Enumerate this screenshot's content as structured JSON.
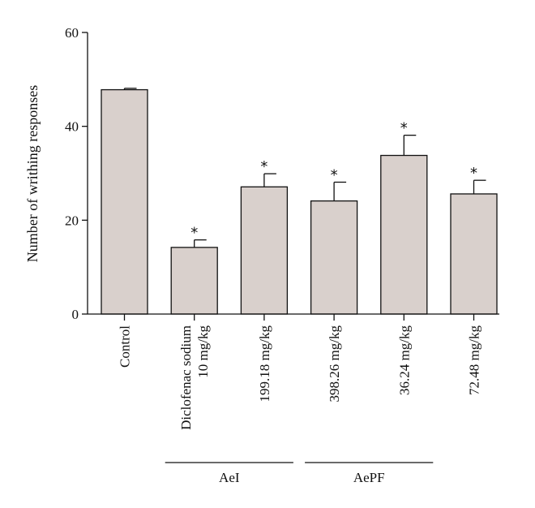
{
  "chart_data": {
    "type": "bar",
    "title": "",
    "ylabel": "Number of writhing responses",
    "xlabel": "",
    "ylim": [
      0,
      60
    ],
    "yticks": [
      0,
      20,
      40,
      60
    ],
    "categories": [
      [
        "Control"
      ],
      [
        "Diclofenac sodium",
        "10 mg/kg"
      ],
      [
        "199.18 mg/kg"
      ],
      [
        "398.26 mg/kg"
      ],
      [
        "36.24 mg/kg"
      ],
      [
        "72.48 mg/kg"
      ]
    ],
    "values": [
      47.8,
      14.2,
      27.1,
      24.1,
      33.8,
      25.6
    ],
    "errors": [
      0.3,
      1.6,
      2.8,
      4.0,
      4.3,
      2.9
    ],
    "significance": [
      "",
      "*",
      "*",
      "*",
      "*",
      "*"
    ],
    "groups": [
      {
        "label": "AeI",
        "from": 1,
        "to": 2
      },
      {
        "label": "AePF",
        "from": 3,
        "to": 4
      }
    ],
    "colors": {
      "bar_fill": "#d9d0cc",
      "bar_stroke": "#111111",
      "axis": "#111111"
    },
    "grid": false,
    "legend": "none"
  }
}
